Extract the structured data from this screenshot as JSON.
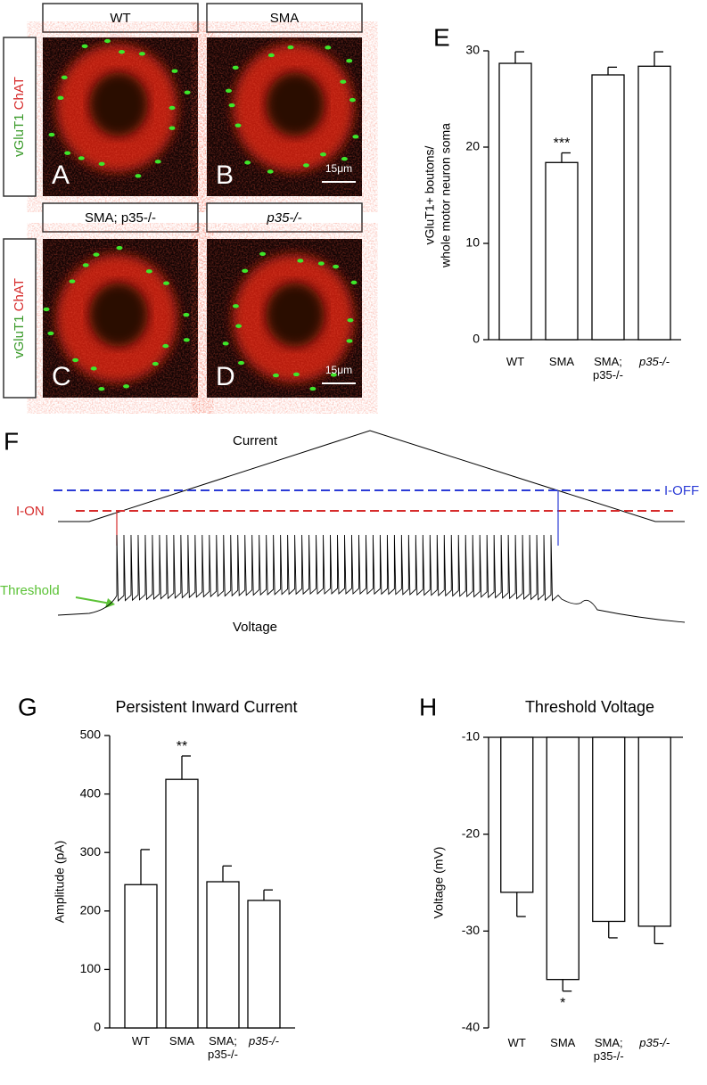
{
  "images": [
    {
      "letter": "A",
      "title": "WT"
    },
    {
      "letter": "B",
      "title": "SMA",
      "scale_bar": "15μm"
    },
    {
      "letter": "C",
      "title": "SMA; p35-/-"
    },
    {
      "letter": "D",
      "title": "p35-/-",
      "scale_bar": "15μm"
    }
  ],
  "stain_labels": [
    {
      "green": "vGluT1",
      "red": "ChAT"
    },
    {
      "green": "vGluT1",
      "red": "ChAT"
    }
  ],
  "trace": {
    "letter": "F",
    "current": "Current",
    "voltage": "Voltage",
    "i_on": "I-ON",
    "i_off": "I-OFF",
    "threshold": "Threshold"
  },
  "chart_data": [
    {
      "type": "bar",
      "letter": "E",
      "ylabel": [
        "vGluT1+ boutons/",
        "whole motor neuron soma"
      ],
      "categories": [
        "WT",
        "SMA",
        "SMA; p35-/-",
        "p35-/-"
      ],
      "values": [
        28.7,
        18.4,
        27.5,
        28.4
      ],
      "errors": [
        1.2,
        1.0,
        0.8,
        1.5
      ],
      "ylim": [
        0,
        30
      ],
      "yticks": [
        0,
        10,
        20,
        30
      ],
      "color": "#ffffff",
      "annotations": [
        {
          "category": "SMA",
          "text": "***"
        }
      ]
    },
    {
      "type": "bar",
      "letter": "G",
      "title": "Persistent Inward Current",
      "ylabel": [
        "Amplitude (pA)"
      ],
      "categories": [
        "WT",
        "SMA",
        "SMA; p35-/-",
        "p35-/-"
      ],
      "values": [
        245,
        425,
        250,
        218
      ],
      "errors": [
        60,
        40,
        27,
        18
      ],
      "ylim": [
        0,
        500
      ],
      "yticks": [
        0,
        100,
        200,
        300,
        400,
        500
      ],
      "color": "#ffffff",
      "annotations": [
        {
          "category": "SMA",
          "text": "**"
        }
      ]
    },
    {
      "type": "bar",
      "letter": "H",
      "title": "Threshold Voltage",
      "ylabel": [
        "Voltage (mV)"
      ],
      "categories": [
        "WT",
        "SMA",
        "SMA; p35-/-",
        "p35-/-"
      ],
      "values": [
        -26,
        -35,
        -29,
        -29.5
      ],
      "errors": [
        2.5,
        1.2,
        1.7,
        1.8
      ],
      "ylim": [
        -40,
        -10
      ],
      "yticks": [
        -40,
        -30,
        -20,
        -10
      ],
      "color": "#ffffff",
      "annotations": [
        {
          "category": "SMA",
          "text": "*"
        }
      ]
    }
  ]
}
